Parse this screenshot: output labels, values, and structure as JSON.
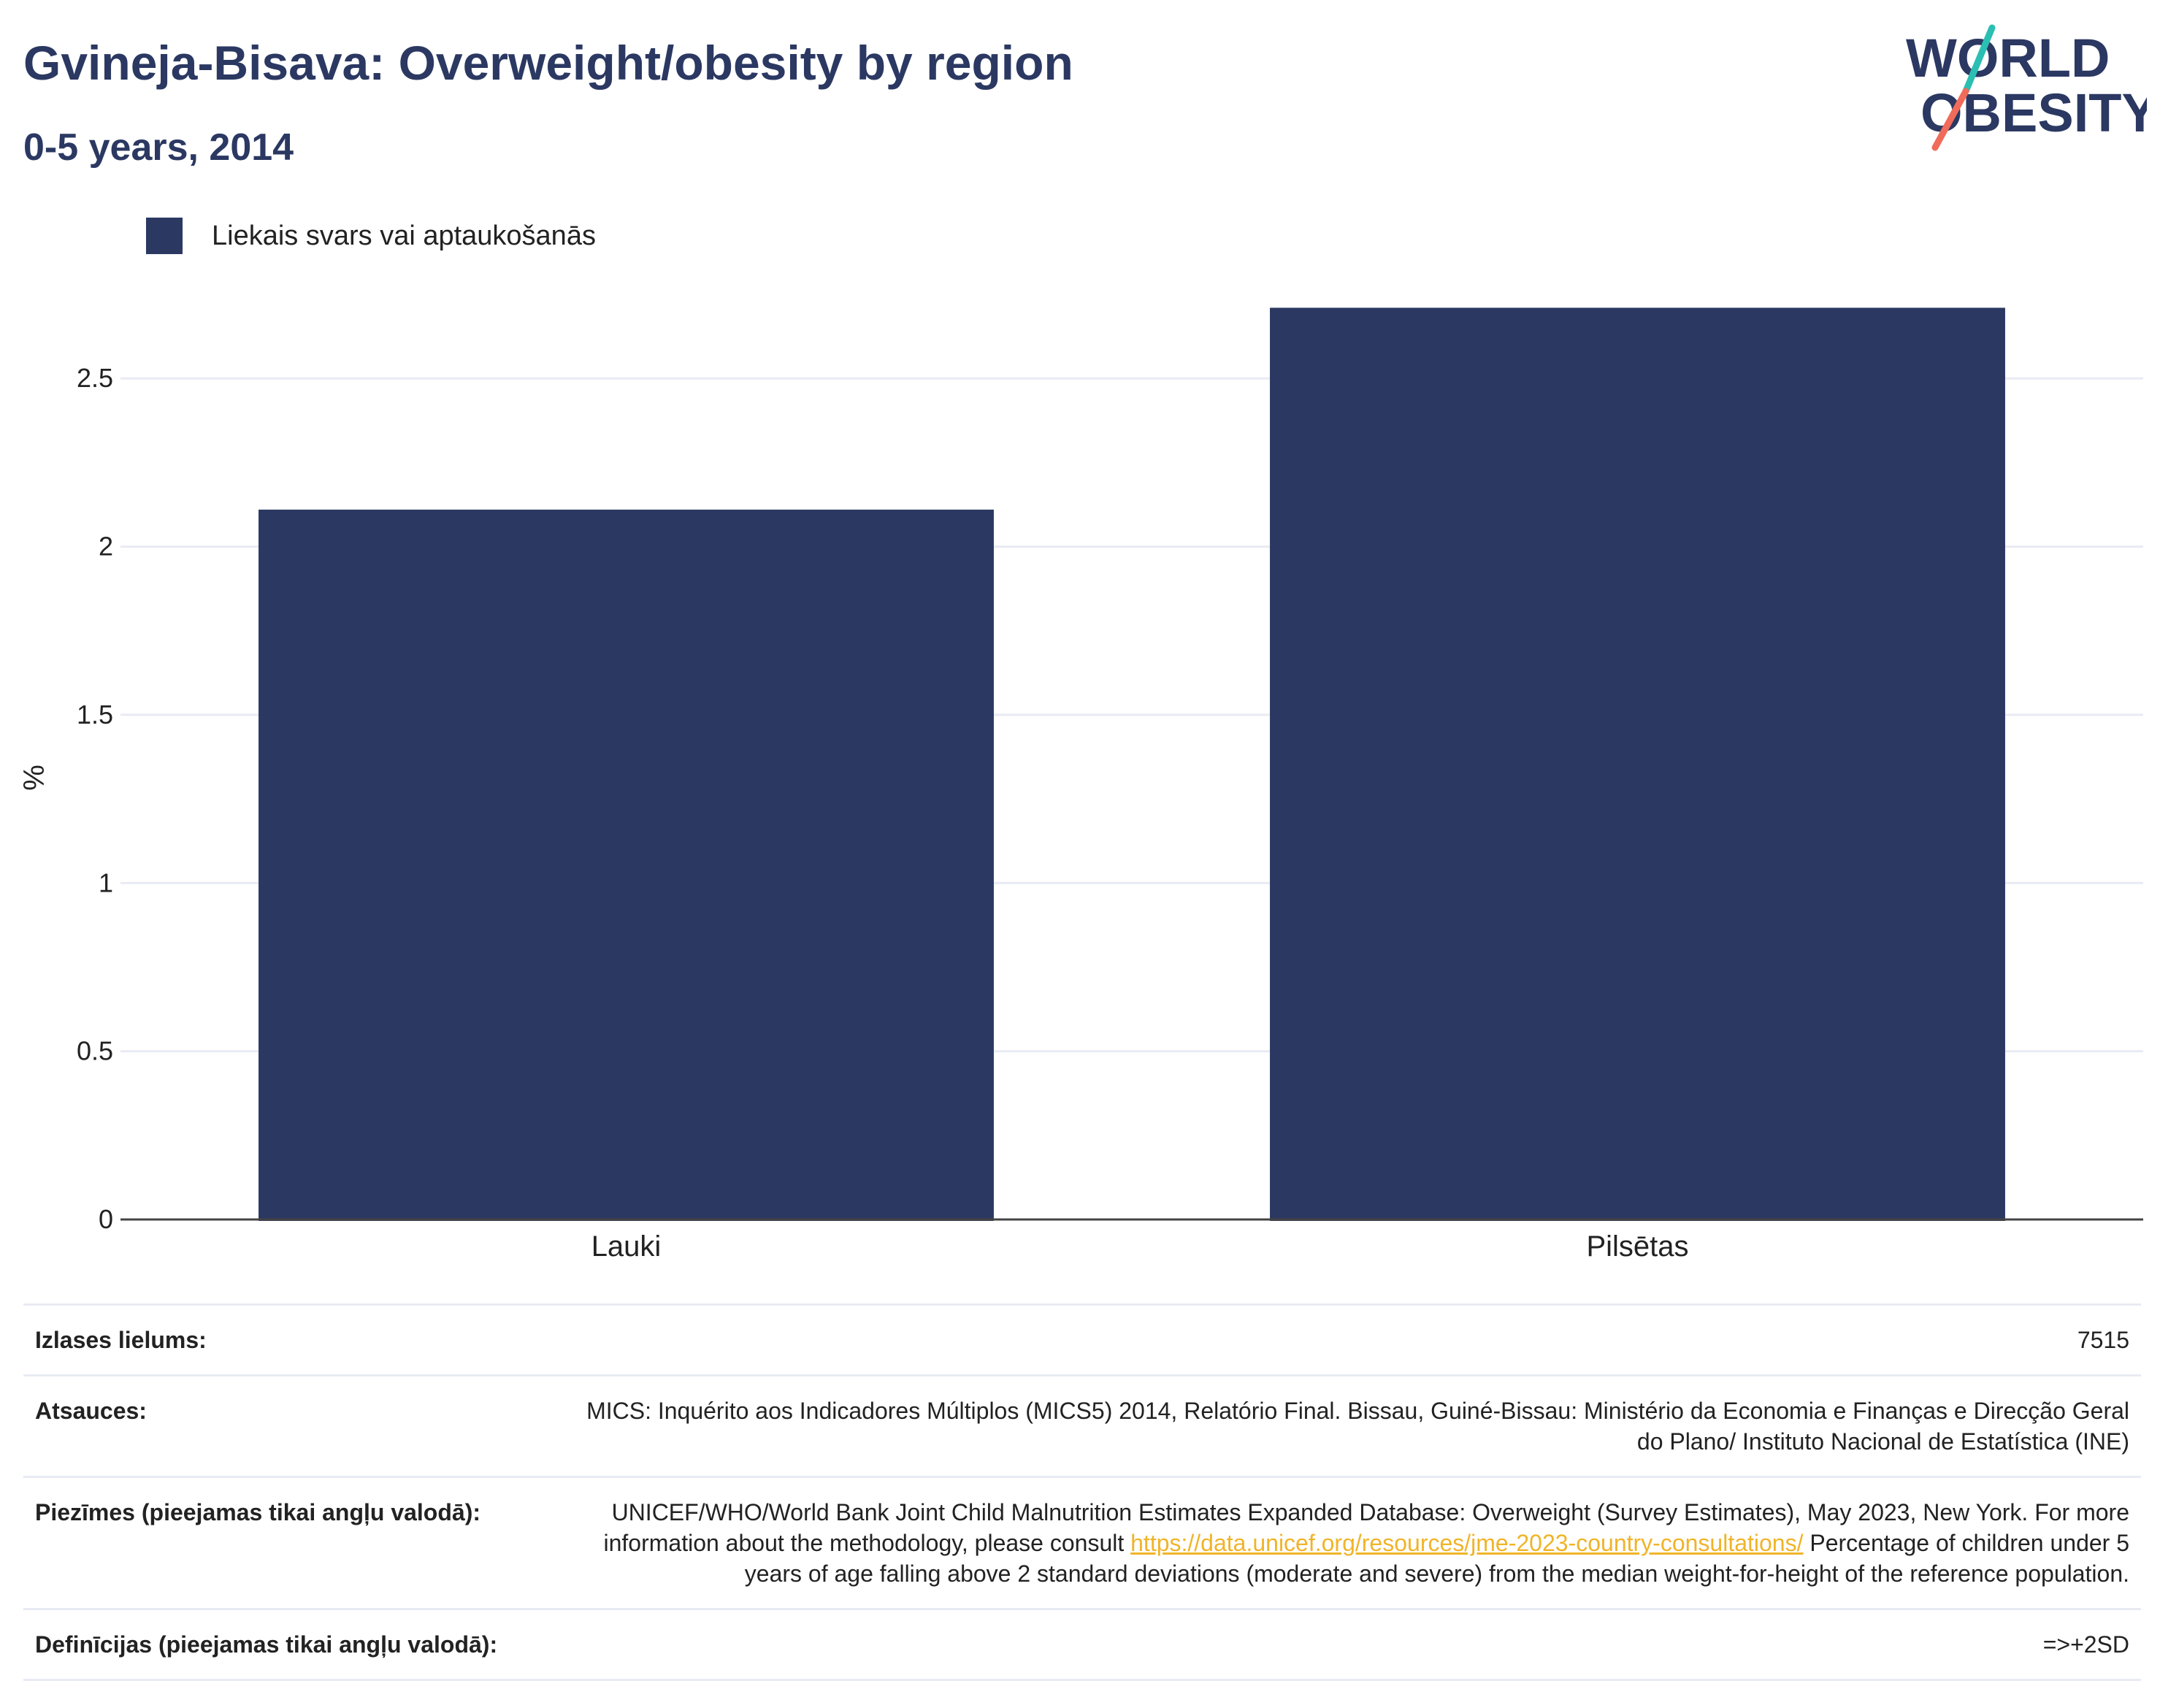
{
  "header": {
    "title": "Gvineja-Bisava: Overweight/obesity by region",
    "subtitle": "0-5 years, 2014"
  },
  "logo": {
    "line1": "WORLD",
    "line2": "OBESITY",
    "accent_teal": "#2bbfb3",
    "accent_coral": "#f06b5a"
  },
  "colors": {
    "bar": "#2b3862",
    "title": "#2b3862",
    "link": "#f0b429"
  },
  "chart_data": {
    "type": "bar",
    "categories": [
      "Lauki",
      "Pilsētas"
    ],
    "series": [
      {
        "name": "Liekais svars vai aptaukošanās",
        "values": [
          2.11,
          2.71
        ]
      }
    ],
    "ylabel": "%",
    "xlabel": "",
    "ylim": [
      0,
      2.8
    ],
    "yticks": [
      0,
      0.5,
      1,
      1.5,
      2,
      2.5
    ],
    "ytick_labels": [
      "0",
      "0.5",
      "1",
      "1.5",
      "2",
      "2.5"
    ],
    "grid": true,
    "legend": "top-left"
  },
  "info": {
    "sample_label": "Izlases lielums:",
    "sample_value": "7515",
    "sources_label": "Atsauces:",
    "sources_value": "MICS: Inquérito aos Indicadores Múltiplos (MICS5) 2014, Relatório Final. Bissau, Guiné-Bissau: Ministério da Economia e Finanças e Direcção Geral do Plano/ Instituto Nacional de Estatística (INE)",
    "notes_label": "Piezīmes (pieejamas tikai angļu valodā):",
    "notes_text_before": "UNICEF/WHO/World Bank Joint Child Malnutrition Estimates Expanded Database: Overweight (Survey Estimates), May 2023, New York. For more information about the methodology, please consult ",
    "notes_link": "https://data.unicef.org/resources/jme-2023-country-consultations/",
    "notes_text_after": " Percentage of children under 5 years of age falling above 2 standard deviations (moderate and severe) from the median weight-for-height of the reference population.",
    "definitions_label": "Definīcijas (pieejamas tikai angļu valodā):",
    "definitions_value": "=>+2SD"
  }
}
